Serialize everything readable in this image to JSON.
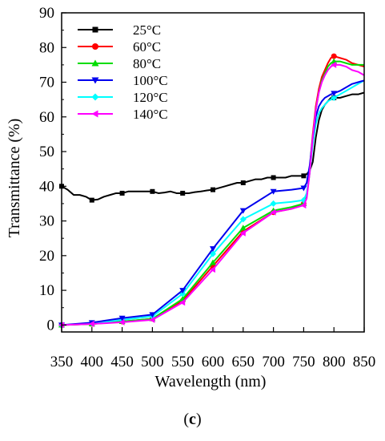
{
  "chart_data": {
    "type": "line",
    "xlabel": "Wavelength (nm)",
    "ylabel": "Transmittance (%)",
    "xlim": [
      350,
      850
    ],
    "ylim": [
      -2,
      90
    ],
    "xticks": [
      350,
      400,
      450,
      500,
      550,
      600,
      650,
      700,
      750,
      800,
      850
    ],
    "yticks": [
      0,
      10,
      20,
      30,
      40,
      50,
      60,
      70,
      80,
      90
    ],
    "grid": false,
    "legend_position": "top-left",
    "series": [
      {
        "name": "25°C",
        "color": "#000000",
        "marker": "square",
        "x": [
          350,
          360,
          370,
          380,
          390,
          400,
          410,
          420,
          430,
          440,
          450,
          460,
          470,
          480,
          490,
          500,
          510,
          520,
          530,
          540,
          550,
          560,
          570,
          580,
          590,
          600,
          610,
          620,
          630,
          640,
          650,
          660,
          670,
          680,
          690,
          700,
          710,
          720,
          730,
          740,
          750,
          755,
          760,
          765,
          770,
          775,
          780,
          785,
          790,
          795,
          800,
          810,
          820,
          830,
          840,
          850
        ],
        "y": [
          40,
          39,
          37.5,
          37.5,
          37,
          36,
          36.2,
          37,
          37.5,
          38,
          38,
          38.5,
          38.5,
          38.5,
          38.5,
          38.5,
          38,
          38.2,
          38.5,
          38,
          38,
          38,
          38.3,
          38.5,
          38.8,
          39,
          39.5,
          40,
          40.5,
          41,
          41,
          41.5,
          42,
          42,
          42.5,
          42.5,
          42.5,
          42.5,
          43,
          43,
          43,
          43.5,
          44.5,
          47,
          54,
          59,
          62,
          63.5,
          64.5,
          65.5,
          65.5,
          65.5,
          66,
          66.5,
          66.5,
          67
        ]
      },
      {
        "name": "60°C",
        "color": "#ff0000",
        "marker": "circle",
        "x": [
          350,
          400,
          450,
          500,
          550,
          600,
          650,
          700,
          730,
          750,
          755,
          760,
          765,
          770,
          775,
          780,
          785,
          790,
          795,
          800,
          810,
          820,
          830,
          840,
          850
        ],
        "y": [
          0,
          0.3,
          1,
          1.8,
          7,
          17,
          27,
          32.5,
          33.5,
          35,
          37,
          45,
          55,
          63,
          68,
          71.5,
          73.5,
          75.5,
          77,
          77.5,
          77,
          76.5,
          75.5,
          75,
          74.5
        ]
      },
      {
        "name": "80°C",
        "color": "#00dd00",
        "marker": "triangle-up",
        "x": [
          350,
          400,
          450,
          500,
          550,
          600,
          650,
          700,
          730,
          750,
          755,
          760,
          765,
          770,
          775,
          780,
          785,
          790,
          795,
          800,
          810,
          820,
          830,
          840,
          850
        ],
        "y": [
          0,
          0.3,
          1,
          1.8,
          7.5,
          18,
          28,
          33,
          34,
          35,
          37,
          44,
          54,
          62,
          67,
          70.5,
          72.5,
          74.5,
          75.5,
          76,
          76,
          75.5,
          75,
          75,
          75
        ]
      },
      {
        "name": "100°C",
        "color": "#0000ee",
        "marker": "triangle-down",
        "x": [
          350,
          400,
          450,
          500,
          550,
          600,
          650,
          700,
          730,
          750,
          755,
          760,
          765,
          770,
          775,
          780,
          785,
          790,
          795,
          800,
          810,
          820,
          830,
          840,
          850
        ],
        "y": [
          0,
          0.7,
          2,
          3,
          10,
          22,
          33,
          38.5,
          39,
          39.5,
          41,
          46,
          54,
          60,
          63,
          64.5,
          65.5,
          66,
          66.5,
          66.8,
          67.5,
          68.5,
          69.5,
          70,
          70.5
        ]
      },
      {
        "name": "120°C",
        "color": "#00ffff",
        "marker": "diamond",
        "x": [
          350,
          400,
          450,
          500,
          550,
          600,
          650,
          700,
          730,
          750,
          755,
          760,
          765,
          770,
          775,
          780,
          785,
          790,
          795,
          800,
          810,
          820,
          830,
          840,
          850
        ],
        "y": [
          0,
          0.5,
          1.5,
          2.5,
          9,
          20.5,
          30.5,
          35,
          35.5,
          36,
          38,
          44,
          52,
          58,
          61,
          62.5,
          63.5,
          64.5,
          65,
          65.5,
          66.5,
          67.5,
          68.5,
          69.5,
          70.5
        ]
      },
      {
        "name": "140°C",
        "color": "#ff00ff",
        "marker": "triangle-left",
        "x": [
          350,
          400,
          450,
          500,
          550,
          600,
          650,
          700,
          730,
          750,
          755,
          760,
          765,
          770,
          775,
          780,
          785,
          790,
          795,
          800,
          810,
          820,
          830,
          840,
          850
        ],
        "y": [
          0,
          0.3,
          0.8,
          1.5,
          6.5,
          16,
          26.5,
          32.5,
          33.5,
          34.5,
          36.5,
          44,
          54,
          62,
          67,
          70,
          72,
          73.5,
          74.5,
          75,
          75,
          74.5,
          73.5,
          73,
          72
        ]
      }
    ]
  },
  "panel_label": {
    "open": "(",
    "letter": "c",
    "close": ")"
  }
}
